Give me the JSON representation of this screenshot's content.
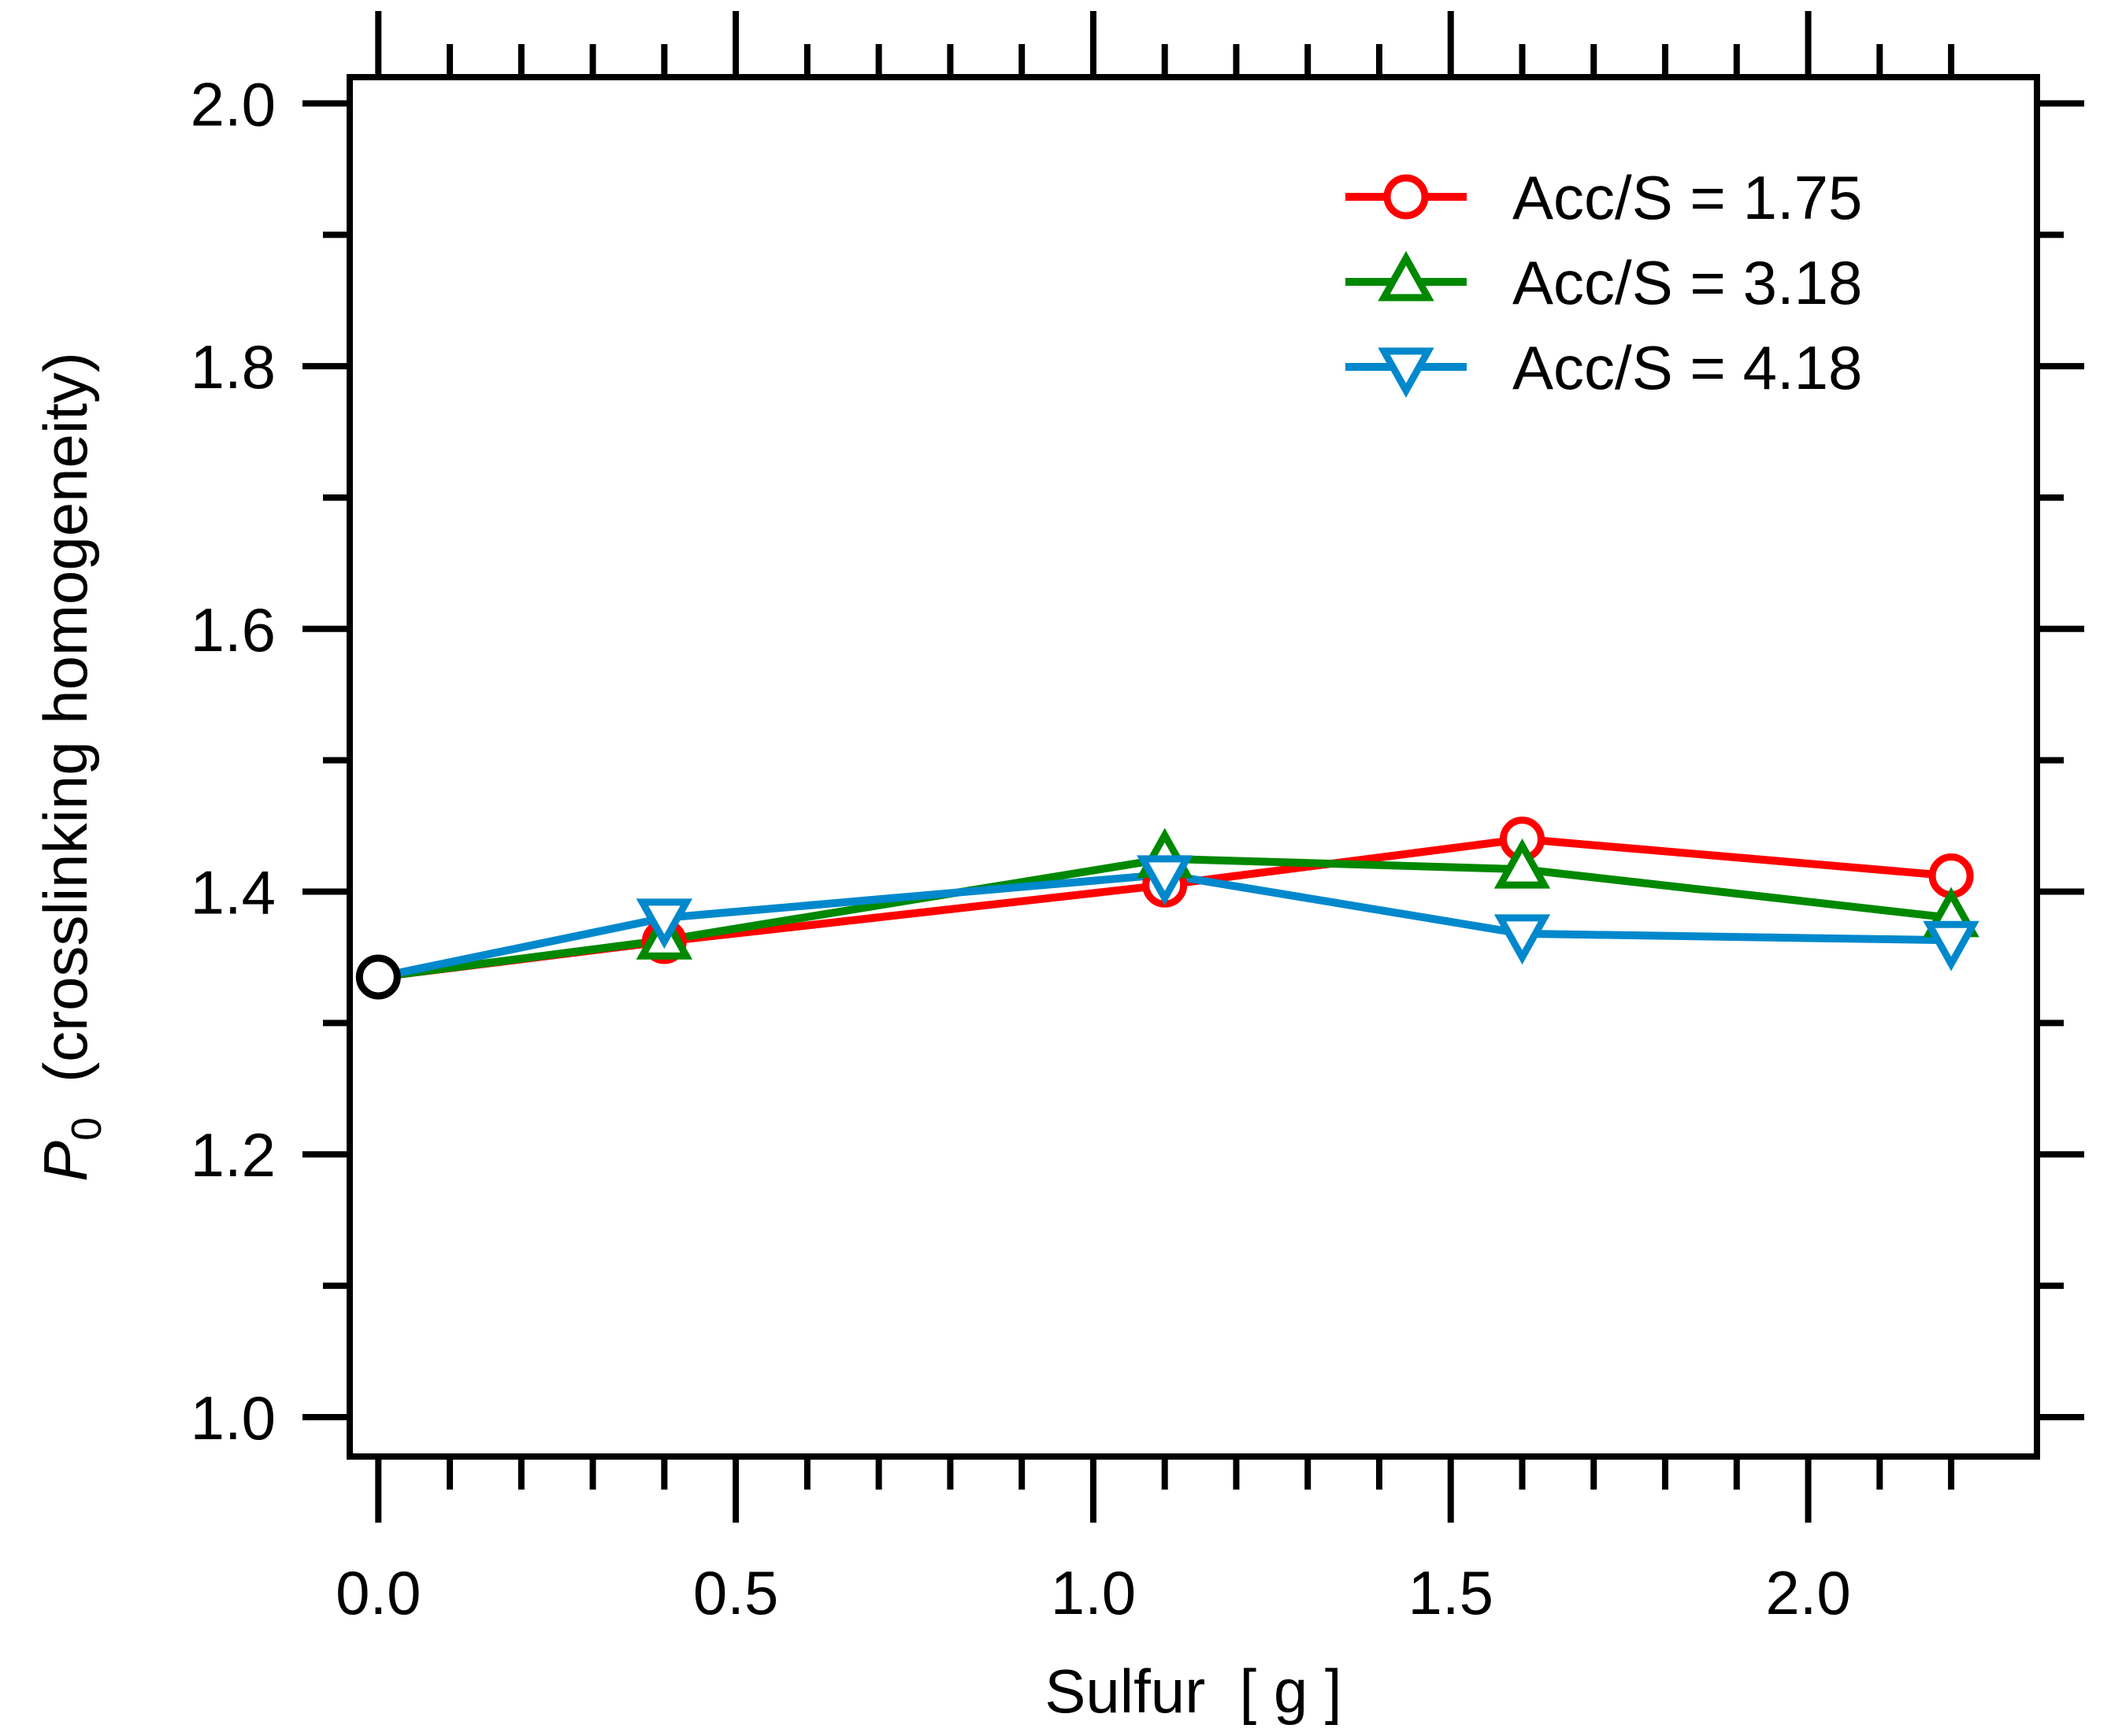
{
  "chart_data": {
    "type": "line",
    "title": "",
    "xlabel": "Sulfur  [ g ]",
    "ylabel_symbol": "P",
    "ylabel_subscript": "0",
    "ylabel_rest": "(crosslinking homogeneity)",
    "xlim": [
      -0.04,
      2.32
    ],
    "ylim": [
      0.97,
      2.02
    ],
    "x_major_ticks": [
      0.0,
      0.5,
      1.0,
      1.5,
      2.0
    ],
    "x_tick_labels": [
      "0.0",
      "0.5",
      "1.0",
      "1.5",
      "2.0"
    ],
    "x_minor_ticks": [
      0.1,
      0.2,
      0.3,
      0.4,
      0.6,
      0.7,
      0.8,
      0.9,
      1.1,
      1.2,
      1.3,
      1.4,
      1.6,
      1.7,
      1.8,
      1.9,
      2.1,
      2.2
    ],
    "y_major_ticks": [
      1.0,
      1.2,
      1.4,
      1.6,
      1.8,
      2.0
    ],
    "y_tick_labels": [
      "1.0",
      "1.2",
      "1.4",
      "1.6",
      "1.8",
      "2.0"
    ],
    "y_minor_ticks": [
      1.1,
      1.3,
      1.5,
      1.7,
      1.9
    ],
    "grid": false,
    "legend_position": "top-right",
    "origin_point": {
      "x": 0.0,
      "y": 1.335,
      "color": "#000000",
      "marker": "circle"
    },
    "series": [
      {
        "name": "Acc/S = 1.75",
        "color": "#ff0000",
        "marker": "circle",
        "x": [
          0.0,
          0.4,
          1.1,
          1.6,
          2.2
        ],
        "y": [
          1.335,
          1.362,
          1.405,
          1.44,
          1.412
        ]
      },
      {
        "name": "Acc/S = 3.18",
        "color": "#008800",
        "marker": "triangle-up",
        "x": [
          0.0,
          0.4,
          1.1,
          1.6,
          2.2
        ],
        "y": [
          1.335,
          1.363,
          1.425,
          1.417,
          1.38
        ]
      },
      {
        "name": "Acc/S = 4.18",
        "color": "#0088cc",
        "marker": "triangle-down",
        "x": [
          0.0,
          0.4,
          1.1,
          1.6,
          2.2
        ],
        "y": [
          1.335,
          1.38,
          1.413,
          1.368,
          1.363
        ]
      }
    ]
  }
}
